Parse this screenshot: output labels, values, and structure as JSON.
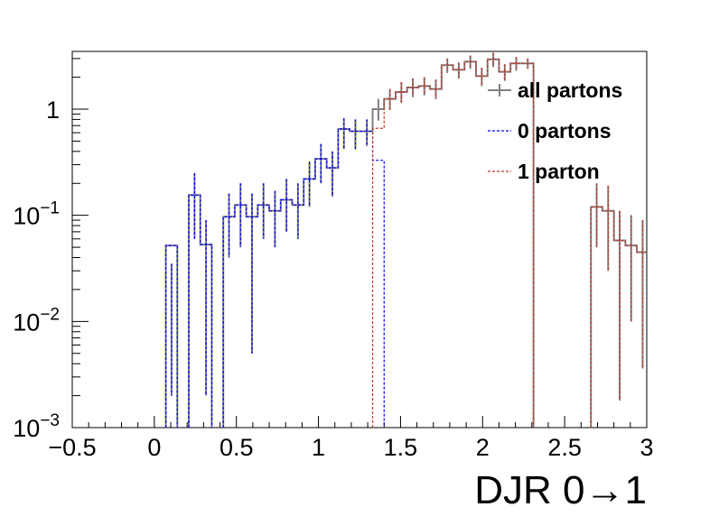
{
  "chart_data": {
    "type": "histogram",
    "title": "",
    "xlabel": "DJR 0→1",
    "ylabel": "",
    "xlim": [
      -0.5,
      3.0
    ],
    "ylim": [
      0.001,
      3.5
    ],
    "ylog": true,
    "grid": false,
    "legend_position": "top-right",
    "x_ticks": [
      {
        "v": -0.5,
        "label": "−0.5"
      },
      {
        "v": 0,
        "label": "0"
      },
      {
        "v": 0.5,
        "label": "0.5"
      },
      {
        "v": 1,
        "label": "1"
      },
      {
        "v": 1.5,
        "label": "1.5"
      },
      {
        "v": 2,
        "label": "2"
      },
      {
        "v": 2.5,
        "label": "2.5"
      },
      {
        "v": 3,
        "label": "3"
      }
    ],
    "y_ticks": [
      {
        "v": 0.001,
        "base": "10",
        "exp": "−3"
      },
      {
        "v": 0.01,
        "base": "10",
        "exp": "−2"
      },
      {
        "v": 0.1,
        "base": "10",
        "exp": "−1"
      },
      {
        "v": 1,
        "base": "1",
        "exp": ""
      }
    ],
    "bin_width": 0.07,
    "series": [
      {
        "name": "all partons",
        "color": "#808080",
        "style": "solid",
        "bins": [
          [
            0.14,
            0.052,
            0.035,
            0.002
          ],
          [
            0.28,
            0.155,
            0.25,
            0.06
          ],
          [
            0.35,
            0.053,
            0.09,
            0.002
          ],
          [
            0.49,
            0.097,
            0.16,
            0.04
          ],
          [
            0.56,
            0.125,
            0.2,
            0.05
          ],
          [
            0.63,
            0.097,
            0.16,
            0.005
          ],
          [
            0.7,
            0.125,
            0.2,
            0.06
          ],
          [
            0.77,
            0.11,
            0.17,
            0.05
          ],
          [
            0.84,
            0.14,
            0.22,
            0.07
          ],
          [
            0.91,
            0.125,
            0.2,
            0.06
          ],
          [
            0.98,
            0.22,
            0.32,
            0.12
          ],
          [
            1.05,
            0.34,
            0.47,
            0.2
          ],
          [
            1.12,
            0.28,
            0.4,
            0.15
          ],
          [
            1.19,
            0.65,
            0.82,
            0.42
          ],
          [
            1.26,
            0.62,
            0.8,
            0.42
          ],
          [
            1.33,
            0.62,
            0.8,
            0.45
          ],
          [
            1.4,
            1.0,
            1.25,
            0.78
          ],
          [
            1.47,
            1.25,
            1.55,
            0.98
          ],
          [
            1.54,
            1.45,
            1.8,
            1.15
          ],
          [
            1.61,
            1.6,
            1.95,
            1.3
          ],
          [
            1.68,
            1.65,
            2.0,
            1.35
          ],
          [
            1.75,
            1.55,
            1.9,
            1.25
          ],
          [
            1.82,
            2.6,
            3.0,
            2.2
          ],
          [
            1.89,
            2.35,
            2.75,
            1.95
          ],
          [
            1.96,
            2.8,
            3.2,
            2.4
          ],
          [
            2.03,
            2.05,
            2.45,
            1.65
          ],
          [
            2.1,
            2.95,
            3.4,
            2.5
          ],
          [
            2.17,
            2.25,
            2.65,
            1.85
          ],
          [
            2.24,
            2.7,
            3.1,
            2.3
          ],
          [
            2.31,
            2.7,
            3.0,
            2.4
          ],
          [
            2.73,
            0.12,
            0.2,
            0.05
          ],
          [
            2.8,
            0.11,
            0.19,
            0.03
          ],
          [
            2.87,
            0.058,
            0.11,
            0.0018
          ],
          [
            2.94,
            0.052,
            0.1,
            0.01
          ],
          [
            3.01,
            0.045,
            0.09,
            0.0036
          ]
        ]
      },
      {
        "name": "0 partons",
        "color": "#0000ff",
        "style": "dashed",
        "bins": [
          [
            0.14,
            0.052,
            0.035,
            0.002
          ],
          [
            0.28,
            0.155,
            0.25,
            0.06
          ],
          [
            0.35,
            0.053,
            0.09,
            0.002
          ],
          [
            0.49,
            0.097,
            0.16,
            0.04
          ],
          [
            0.56,
            0.125,
            0.2,
            0.05
          ],
          [
            0.63,
            0.097,
            0.16,
            0.005
          ],
          [
            0.7,
            0.125,
            0.2,
            0.06
          ],
          [
            0.77,
            0.11,
            0.17,
            0.05
          ],
          [
            0.84,
            0.14,
            0.22,
            0.07
          ],
          [
            0.91,
            0.125,
            0.2,
            0.06
          ],
          [
            0.98,
            0.22,
            0.32,
            0.12
          ],
          [
            1.05,
            0.34,
            0.47,
            0.2
          ],
          [
            1.12,
            0.28,
            0.4,
            0.15
          ],
          [
            1.19,
            0.65,
            0.82,
            0.42
          ],
          [
            1.26,
            0.62,
            0.8,
            0.42
          ],
          [
            1.33,
            0.62,
            0.8,
            0.45
          ],
          [
            1.4,
            0.33,
            0.33,
            0.33
          ]
        ]
      },
      {
        "name": "1 parton",
        "color": "#c0392b",
        "style": "dashed",
        "bins": [
          [
            1.4,
            0.66,
            0.66,
            0.66
          ],
          [
            1.47,
            1.25,
            1.55,
            0.98
          ],
          [
            1.54,
            1.45,
            1.8,
            1.15
          ],
          [
            1.61,
            1.6,
            1.95,
            1.3
          ],
          [
            1.68,
            1.65,
            2.0,
            1.35
          ],
          [
            1.75,
            1.55,
            1.9,
            1.25
          ],
          [
            1.82,
            2.6,
            3.0,
            2.2
          ],
          [
            1.89,
            2.35,
            2.75,
            1.95
          ],
          [
            1.96,
            2.8,
            3.2,
            2.4
          ],
          [
            2.03,
            2.05,
            2.45,
            1.65
          ],
          [
            2.1,
            2.95,
            3.4,
            2.5
          ],
          [
            2.17,
            2.25,
            2.65,
            1.85
          ],
          [
            2.24,
            2.7,
            3.1,
            2.3
          ],
          [
            2.31,
            2.7,
            3.0,
            2.4
          ],
          [
            2.73,
            0.12,
            0.2,
            0.05
          ],
          [
            2.8,
            0.11,
            0.19,
            0.03
          ],
          [
            2.87,
            0.058,
            0.11,
            0.0018
          ],
          [
            2.94,
            0.052,
            0.1,
            0.01
          ],
          [
            3.01,
            0.045,
            0.09,
            0.0036
          ]
        ]
      }
    ]
  }
}
